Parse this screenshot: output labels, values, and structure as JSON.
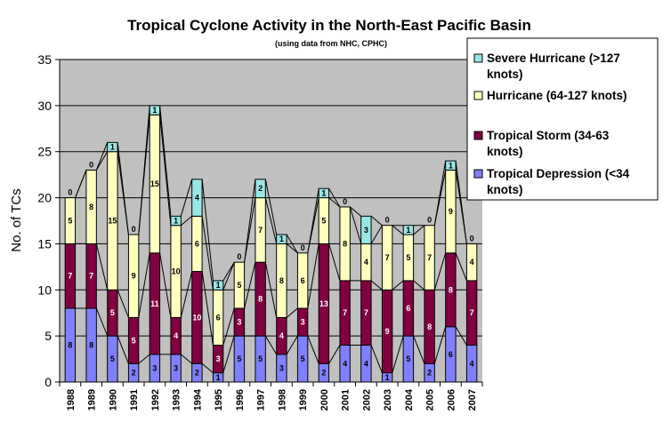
{
  "chart_data": {
    "type": "bar",
    "stacked": true,
    "title": "Tropical Cyclone Activity in the North-East Pacific Basin",
    "subtitle": "(using data from NHC, CPHC)",
    "xlabel": "",
    "ylabel": "No. of TCs",
    "ylim": [
      0,
      35
    ],
    "ytick_step": 5,
    "grid": true,
    "legend_position": "top-right",
    "categories": [
      "1988",
      "1989",
      "1990",
      "1991",
      "1992",
      "1993",
      "1994",
      "1995",
      "1996",
      "1997",
      "1998",
      "1999",
      "2000",
      "2001",
      "2002",
      "2003",
      "2004",
      "2005",
      "2006",
      "2007"
    ],
    "series": [
      {
        "name": "Tropical Depression (<34 knots)",
        "color": "#8080ff",
        "values": [
          8,
          8,
          5,
          2,
          3,
          3,
          2,
          1,
          5,
          5,
          3,
          5,
          2,
          4,
          4,
          1,
          5,
          2,
          6,
          4
        ]
      },
      {
        "name": "Tropical Storm (34-63 knots)",
        "color": "#800040",
        "values": [
          7,
          7,
          5,
          5,
          11,
          4,
          10,
          3,
          3,
          8,
          4,
          3,
          13,
          7,
          7,
          9,
          6,
          8,
          8,
          7
        ]
      },
      {
        "name": "Hurricane (64-127 knots)",
        "color": "#ffffc0",
        "values": [
          5,
          8,
          15,
          9,
          15,
          10,
          6,
          6,
          5,
          7,
          8,
          6,
          5,
          8,
          4,
          7,
          5,
          7,
          9,
          4
        ]
      },
      {
        "name": "Severe Hurricane (>127 knots)",
        "color": "#99e6e6",
        "values": [
          0,
          0,
          1,
          0,
          1,
          1,
          4,
          1,
          0,
          2,
          1,
          0,
          1,
          0,
          3,
          0,
          1,
          0,
          1,
          0
        ]
      }
    ],
    "legend_order": [
      3,
      2,
      1,
      0
    ]
  }
}
